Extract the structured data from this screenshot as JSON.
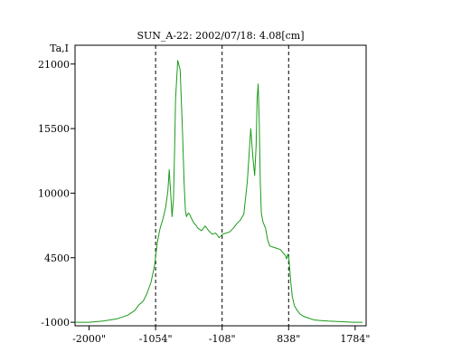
{
  "chart_data": {
    "type": "line",
    "title": "SUN_A-22: 2002/07/18: 4.08[cm]",
    "ylabel": "Ta,I",
    "xlabel": "",
    "xlim": [
      -2200,
      1940
    ],
    "ylim": [
      -1300,
      22600
    ],
    "x_ticks": [
      {
        "value": -2000,
        "label": "-2000\""
      },
      {
        "value": -1054,
        "label": "-1054\""
      },
      {
        "value": -108,
        "label": "-108\""
      },
      {
        "value": 838,
        "label": "838\""
      },
      {
        "value": 1784,
        "label": "1784\""
      }
    ],
    "y_ticks": [
      {
        "value": 21000,
        "label": "21000"
      },
      {
        "value": 15500,
        "label": "15500"
      },
      {
        "value": 10000,
        "label": "10000"
      },
      {
        "value": 4500,
        "label": "4500"
      },
      {
        "value": -1000,
        "label": "-1000"
      }
    ],
    "markers": [
      -1054,
      -108,
      838
    ],
    "grid": false,
    "line_color": "#1a9a1a",
    "marker_color": "#000000",
    "series": [
      {
        "x": [
          -2200,
          -2000,
          -1800,
          -1600,
          -1450,
          -1350,
          -1290,
          -1230,
          -1180,
          -1120,
          -1070,
          -1030,
          -990,
          -950,
          -910,
          -880,
          -860,
          -840,
          -820,
          -800,
          -785,
          -770,
          -740,
          -705,
          -670,
          -650,
          -630,
          -615,
          -600,
          -585,
          -570,
          -555,
          -540,
          -515,
          -485,
          -450,
          -400,
          -350,
          -300,
          -250,
          -200,
          -150,
          -100,
          -50,
          0,
          50,
          100,
          150,
          200,
          250,
          300,
          330,
          355,
          375,
          390,
          405,
          420,
          435,
          450,
          470,
          490,
          510,
          540,
          570,
          620,
          670,
          720,
          760,
          790,
          810,
          825,
          838,
          855,
          870,
          890,
          920,
          960,
          1000,
          1050,
          1100,
          1150,
          1200,
          1300,
          1400,
          1600,
          1750,
          1890
        ],
        "y": [
          -1000,
          -1000,
          -900,
          -700,
          -400,
          0,
          500,
          800,
          1400,
          2400,
          3800,
          5800,
          7000,
          7800,
          8800,
          10200,
          12000,
          10000,
          8000,
          9500,
          13500,
          18000,
          21300,
          20500,
          15000,
          11000,
          8500,
          8000,
          8200,
          8300,
          8200,
          8000,
          7800,
          7500,
          7300,
          7000,
          6800,
          7200,
          6800,
          6500,
          6600,
          6200,
          6500,
          6600,
          6700,
          7000,
          7400,
          7700,
          8200,
          11000,
          15500,
          13000,
          11500,
          14000,
          18000,
          19300,
          16000,
          11000,
          8300,
          7600,
          7300,
          7000,
          6000,
          5500,
          5400,
          5300,
          5200,
          4900,
          4700,
          4400,
          4800,
          4600,
          3500,
          2300,
          1200,
          400,
          0,
          -300,
          -500,
          -600,
          -700,
          -800,
          -850,
          -900,
          -950,
          -1000,
          -1000
        ]
      }
    ]
  }
}
